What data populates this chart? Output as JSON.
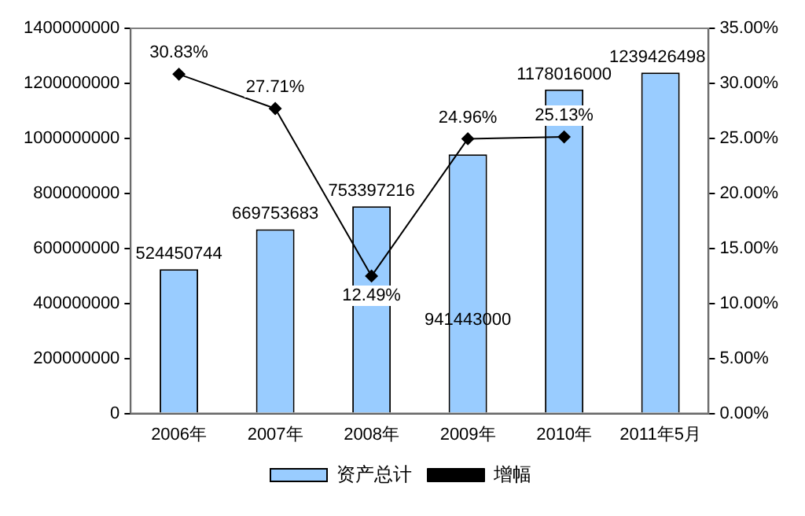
{
  "chart_data": {
    "type": "bar",
    "categories": [
      "2006年",
      "2007年",
      "2008年",
      "2009年",
      "2010年",
      "2011年5月"
    ],
    "series": [
      {
        "name": "资产总计",
        "color": "#99ccff",
        "values": [
          524450744,
          669753683,
          753397216,
          941443000,
          1178016000,
          1239426498
        ],
        "value_labels": [
          "524450744",
          "669753683",
          "753397216",
          "941443000",
          "1178016000",
          "1239426498"
        ]
      },
      {
        "name": "增幅",
        "type": "line",
        "axis": "y2",
        "color": "#000000",
        "marker": "diamond",
        "values": [
          30.83,
          27.71,
          12.49,
          24.96,
          25.13,
          null
        ],
        "value_labels": [
          "30.83%",
          "27.71%",
          "12.49%",
          "24.96%",
          "25.13%",
          null
        ]
      }
    ],
    "ylim": [
      0,
      1400000000
    ],
    "yticks": [
      0,
      200000000,
      400000000,
      600000000,
      800000000,
      1000000000,
      1200000000,
      1400000000
    ],
    "y2lim": [
      0,
      35
    ],
    "y2ticks": [
      {
        "value": 0,
        "label": "0.00%"
      },
      {
        "value": 5,
        "label": "5.00%"
      },
      {
        "value": 10,
        "label": "10.00%"
      },
      {
        "value": 15,
        "label": "15.00%"
      },
      {
        "value": 20,
        "label": "20.00%"
      },
      {
        "value": 25,
        "label": "25.00%"
      },
      {
        "value": 30,
        "label": "30.00%"
      },
      {
        "value": 35,
        "label": "35.00%"
      }
    ],
    "grid": false,
    "legend": "bottom"
  }
}
